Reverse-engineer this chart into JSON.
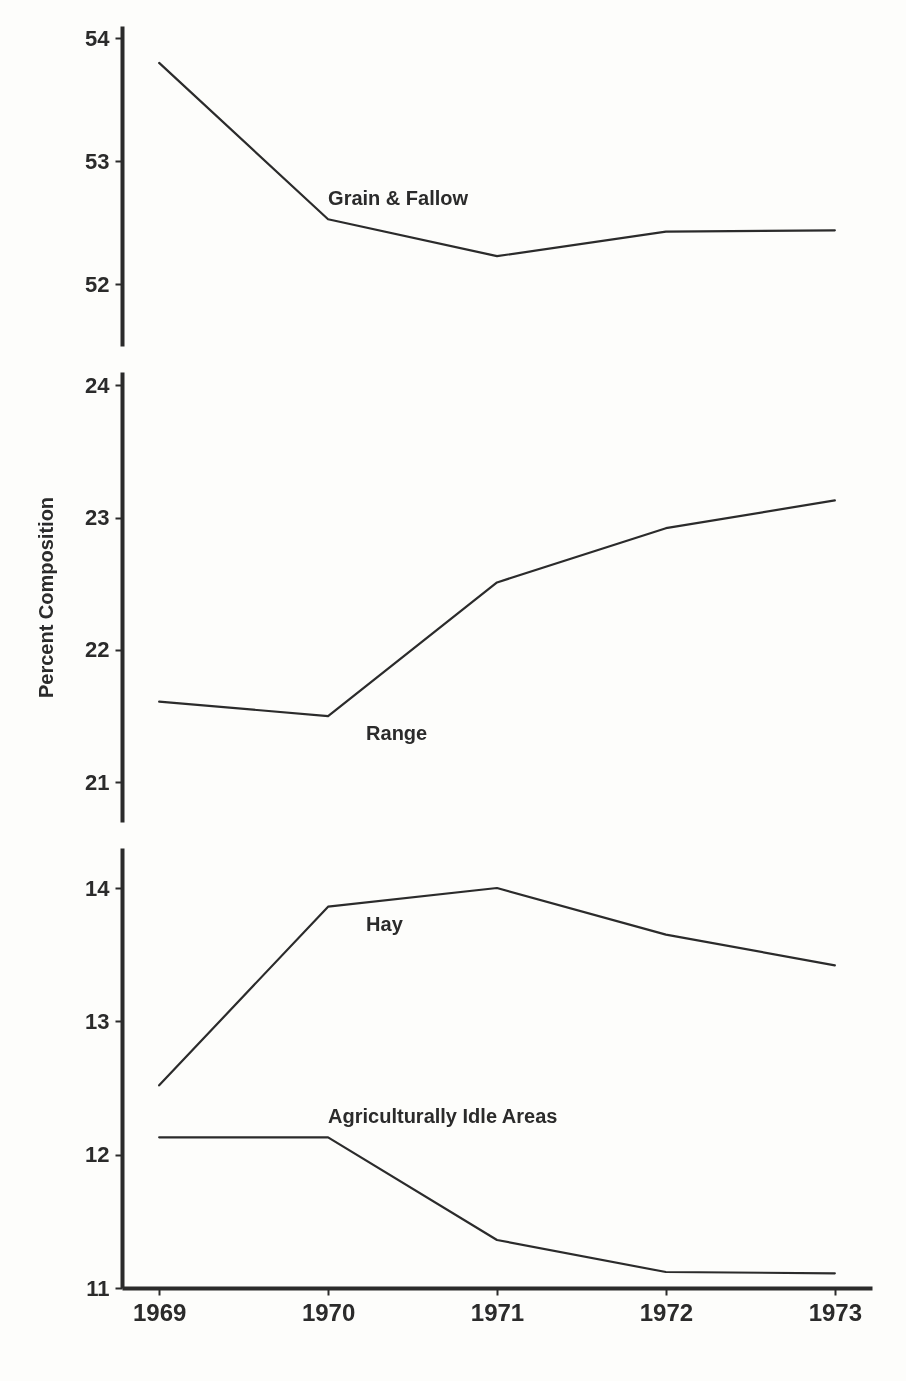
{
  "chart_data": [
    {
      "type": "line",
      "categories": [
        "1969",
        "1970",
        "1971",
        "1972",
        "1973"
      ],
      "ylim": [
        51.5,
        54.1
      ],
      "yticks": [
        52,
        53,
        54
      ],
      "tick_labels": "y",
      "series": [
        {
          "name": "Grain & Fallow",
          "color": "#2b2b2b",
          "values": [
            53.8,
            52.53,
            52.23,
            52.43,
            52.44
          ]
        }
      ]
    },
    {
      "type": "line",
      "categories": [
        "1969",
        "1970",
        "1971",
        "1972",
        "1973"
      ],
      "ylim": [
        20.7,
        24.1
      ],
      "yticks": [
        21,
        22,
        23,
        24
      ],
      "tick_labels": "y",
      "ylabel": "Percent Composition",
      "series": [
        {
          "name": "Range",
          "color": "#2b2b2b",
          "values": [
            21.61,
            21.5,
            22.51,
            22.92,
            23.13
          ]
        }
      ]
    },
    {
      "type": "line",
      "categories": [
        "1969",
        "1970",
        "1971",
        "1972",
        "1973"
      ],
      "ylim": [
        11,
        14.3
      ],
      "yticks": [
        11,
        12,
        13,
        14
      ],
      "series": [
        {
          "name": "Hay",
          "color": "#2b2b2b",
          "values": [
            12.52,
            13.86,
            14.0,
            13.65,
            13.42
          ]
        },
        {
          "name": "Agriculturally Idle Areas",
          "color": "#2b2b2b",
          "values": [
            12.13,
            12.13,
            11.36,
            11.12,
            11.11
          ]
        }
      ]
    }
  ]
}
